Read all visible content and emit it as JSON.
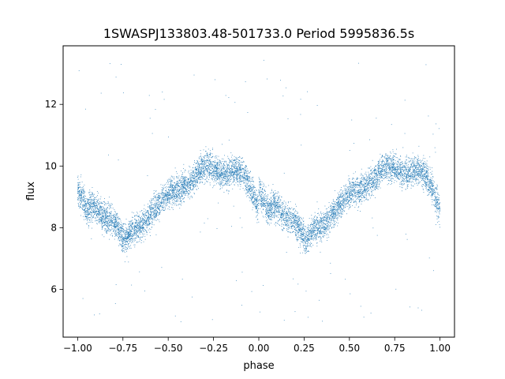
{
  "chart_data": {
    "type": "scatter",
    "title": "1SWASPJ133803.48-501733.0 Period 5995836.5s",
    "xlabel": "phase",
    "ylabel": "flux",
    "xlim": [
      -1.08,
      1.08
    ],
    "ylim": [
      4.45,
      13.9
    ],
    "x_ticks": [
      -1.0,
      -0.75,
      -0.5,
      -0.25,
      0.0,
      0.25,
      0.5,
      0.75,
      1.0
    ],
    "x_tick_labels": [
      "−1.00",
      "−0.75",
      "−0.50",
      "−0.25",
      "0.00",
      "0.25",
      "0.50",
      "0.75",
      "1.00"
    ],
    "y_ticks": [
      6,
      8,
      10,
      12
    ],
    "y_tick_labels": [
      "6",
      "8",
      "10",
      "12"
    ],
    "grid": false,
    "legend": "none",
    "point_color": "#1f77b4",
    "series": [
      {
        "phase_profile": {
          "x": [
            0.0,
            0.03,
            0.05,
            0.08,
            0.12,
            0.16,
            0.2,
            0.23,
            0.26,
            0.3,
            0.33,
            0.36,
            0.4,
            0.44,
            0.48,
            0.52,
            0.56,
            0.6,
            0.64,
            0.68,
            0.72,
            0.76,
            0.8,
            0.84,
            0.88,
            0.92,
            0.96,
            1.0
          ],
          "y": [
            9.2,
            8.9,
            8.5,
            8.8,
            8.5,
            8.3,
            8.2,
            7.9,
            7.6,
            7.9,
            8.0,
            8.1,
            8.4,
            8.7,
            9.0,
            9.2,
            9.2,
            9.4,
            9.6,
            9.9,
            10.0,
            9.9,
            9.7,
            9.8,
            9.9,
            9.7,
            9.2,
            8.6
          ]
        },
        "scatter_half_width": 0.55,
        "outlier_range": [
          4.9,
          13.5
        ],
        "n_points": 9000
      }
    ]
  }
}
